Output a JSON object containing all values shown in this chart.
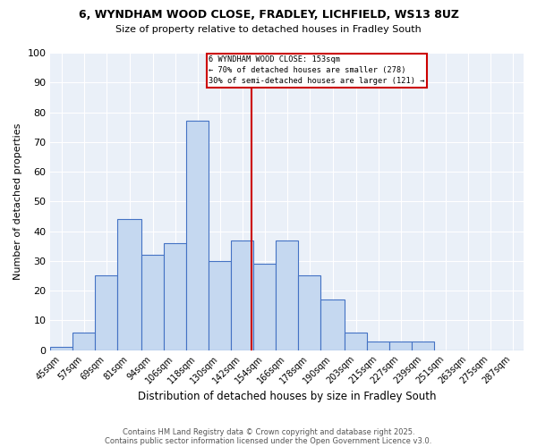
{
  "title1": "6, WYNDHAM WOOD CLOSE, FRADLEY, LICHFIELD, WS13 8UZ",
  "title2": "Size of property relative to detached houses in Fradley South",
  "xlabel": "Distribution of detached houses by size in Fradley South",
  "ylabel": "Number of detached properties",
  "bar_labels": [
    "45sqm",
    "57sqm",
    "69sqm",
    "81sqm",
    "94sqm",
    "106sqm",
    "118sqm",
    "130sqm",
    "142sqm",
    "154sqm",
    "166sqm",
    "178sqm",
    "190sqm",
    "203sqm",
    "215sqm",
    "227sqm",
    "239sqm",
    "251sqm",
    "263sqm",
    "275sqm",
    "287sqm"
  ],
  "bar_heights": [
    1,
    6,
    25,
    44,
    32,
    36,
    77,
    30,
    37,
    29,
    37,
    25,
    17,
    6,
    3,
    3,
    3,
    0,
    0,
    0,
    0
  ],
  "bar_color": "#c5d8f0",
  "bar_edgecolor": "#4472c4",
  "property_line_x": 153,
  "annotation_text": "6 WYNDHAM WOOD CLOSE: 153sqm\n← 70% of detached houses are smaller (278)\n30% of semi-detached houses are larger (121) →",
  "annotation_box_edgecolor": "#cc0000",
  "vline_color": "#cc0000",
  "ylim": [
    0,
    100
  ],
  "yticks": [
    0,
    10,
    20,
    30,
    40,
    50,
    60,
    70,
    80,
    90,
    100
  ],
  "background_color": "#eaf0f8",
  "grid_color": "#ffffff",
  "footer_line1": "Contains HM Land Registry data © Crown copyright and database right 2025.",
  "footer_line2": "Contains public sector information licensed under the Open Government Licence v3.0.",
  "bin_edges": [
    45,
    57,
    69,
    81,
    94,
    106,
    118,
    130,
    142,
    154,
    166,
    178,
    190,
    203,
    215,
    227,
    239,
    251,
    263,
    275,
    287,
    299
  ]
}
